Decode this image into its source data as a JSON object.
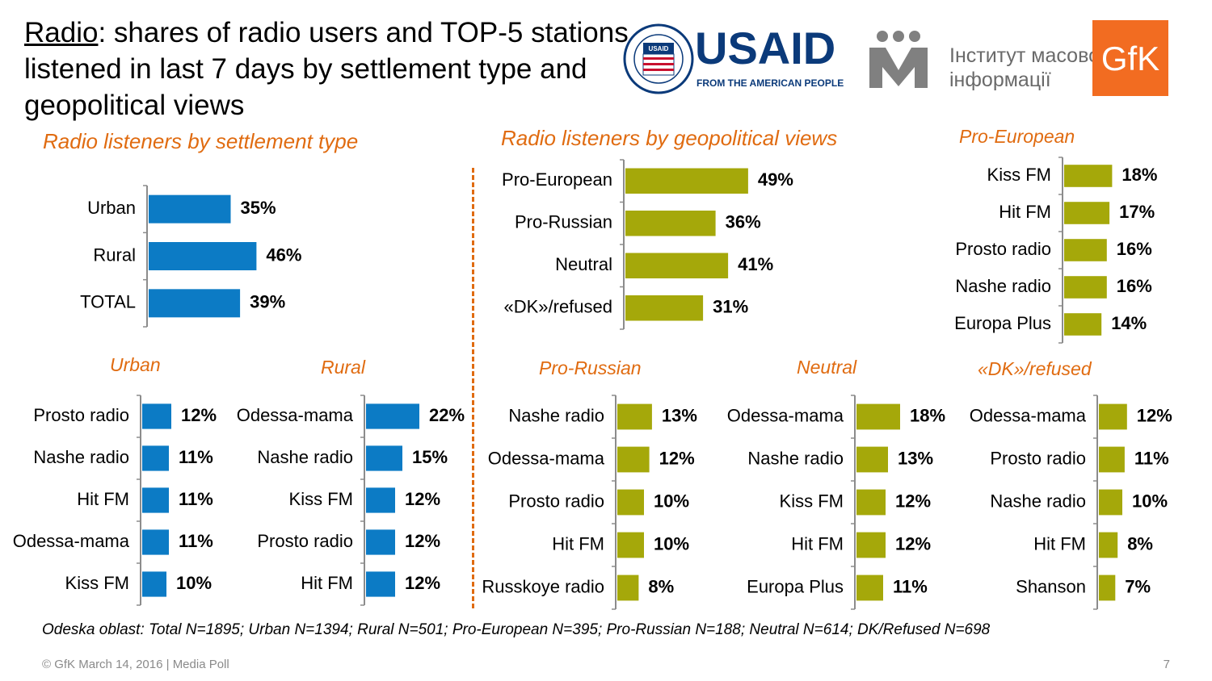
{
  "title": {
    "underlined": "Radio",
    "rest": ": shares of radio users and TOP-5 stations listened in last 7 days by settlement type and geopolitical views"
  },
  "logos": {
    "usaid_main": "USAID",
    "usaid_sub": "FROM THE AMERICAN PEOPLE",
    "usaid_seal": "UNITED STATES AGENCY INTERNATIONAL DEVELOPMENT",
    "imi_line1": "Інститут масової",
    "imi_line2": "інформації",
    "gfk": "GfK"
  },
  "colors": {
    "blue": "#0c7bc5",
    "olive": "#a5a80a",
    "orange": "#e06b10",
    "axis": "#8c8c8c"
  },
  "sections": {
    "settlement": "Radio listeners by settlement type",
    "geopolitical": "Radio listeners by geopolitical views"
  },
  "footnote": "Odeska oblast: Total N=1895; Urban N=1394; Rural N=501; Pro-European N=395; Pro-Russian N=188; Neutral N=614; DK/Refused N=698",
  "footer": "© GfK March 14, 2016 | Media Poll",
  "page_number": "7",
  "chart_data": [
    {
      "id": "settlement",
      "type": "bar",
      "orientation": "horizontal",
      "title": "",
      "categories": [
        "Urban",
        "Rural",
        "TOTAL"
      ],
      "values": [
        35,
        46,
        39
      ],
      "labels": [
        "35%",
        "46%",
        "39%"
      ],
      "color": "blue"
    },
    {
      "id": "geopolitical",
      "type": "bar",
      "orientation": "horizontal",
      "title": "",
      "categories": [
        "Pro-European",
        "Pro-Russian",
        "Neutral",
        "«DK»/refused"
      ],
      "values": [
        49,
        36,
        41,
        31
      ],
      "labels": [
        "49%",
        "36%",
        "41%",
        "31%"
      ],
      "color": "olive"
    },
    {
      "id": "pro-european",
      "type": "bar",
      "orientation": "horizontal",
      "title": "Pro-European",
      "categories": [
        "Kiss FM",
        "Hit FM",
        "Prosto radio",
        "Nashe radio",
        "Europa Plus"
      ],
      "values": [
        18,
        17,
        16,
        16,
        14
      ],
      "labels": [
        "18%",
        "17%",
        "16%",
        "16%",
        "14%"
      ],
      "color": "olive"
    },
    {
      "id": "urban",
      "type": "bar",
      "orientation": "horizontal",
      "title": "Urban",
      "categories": [
        "Prosto radio",
        "Nashe radio",
        "Hit FM",
        "Odessa-mama",
        "Kiss FM"
      ],
      "values": [
        12,
        11,
        11,
        11,
        10
      ],
      "labels": [
        "12%",
        "11%",
        "11%",
        "11%",
        "10%"
      ],
      "color": "blue"
    },
    {
      "id": "rural",
      "type": "bar",
      "orientation": "horizontal",
      "title": "Rural",
      "categories": [
        "Odessa-mama",
        "Nashe radio",
        "Kiss FM",
        "Prosto radio",
        "Hit FM"
      ],
      "values": [
        22,
        15,
        12,
        12,
        12
      ],
      "labels": [
        "22%",
        "15%",
        "12%",
        "12%",
        "12%"
      ],
      "color": "blue"
    },
    {
      "id": "pro-russian",
      "type": "bar",
      "orientation": "horizontal",
      "title": "Pro-Russian",
      "categories": [
        "Nashe radio",
        "Odessa-mama",
        "Prosto radio",
        "Hit FM",
        "Russkoye radio"
      ],
      "values": [
        13,
        12,
        10,
        10,
        8
      ],
      "labels": [
        "13%",
        "12%",
        "10%",
        "10%",
        "8%"
      ],
      "color": "olive"
    },
    {
      "id": "neutral",
      "type": "bar",
      "orientation": "horizontal",
      "title": "Neutral",
      "categories": [
        "Odessa-mama",
        "Nashe radio",
        "Kiss FM",
        "Hit FM",
        "Europa Plus"
      ],
      "values": [
        18,
        13,
        12,
        12,
        11
      ],
      "labels": [
        "18%",
        "13%",
        "12%",
        "12%",
        "11%"
      ],
      "color": "olive"
    },
    {
      "id": "dk-refused",
      "type": "bar",
      "orientation": "horizontal",
      "title": "«DK»/refused",
      "categories": [
        "Odessa-mama",
        "Prosto radio",
        "Nashe radio",
        "Hit FM",
        "Shanson"
      ],
      "values": [
        12,
        11,
        10,
        8,
        7
      ],
      "labels": [
        "12%",
        "11%",
        "10%",
        "8%",
        "7%"
      ],
      "color": "olive"
    }
  ]
}
